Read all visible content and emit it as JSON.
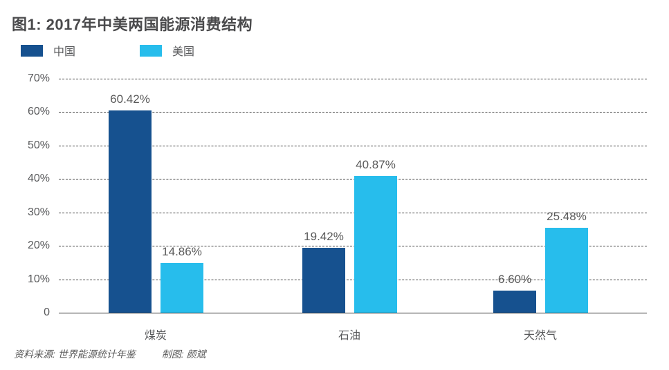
{
  "title": "图1: 2017年中美两国能源消费结构",
  "footer": {
    "source": "资料来源: 世界能源统计年鉴",
    "credit": "制图: 颜斌"
  },
  "colors": {
    "china": "#16518f",
    "usa": "#27bdec",
    "title_text": "#4a4a4c",
    "label_text": "#595959",
    "grid": "#3f3f3f"
  },
  "chart_data": {
    "type": "bar",
    "title": "图1: 2017年中美两国能源消费结构",
    "categories": [
      "煤炭",
      "石油",
      "天然气"
    ],
    "category_ids": [
      "coal",
      "oil",
      "gas"
    ],
    "series": [
      {
        "id": "china",
        "name": "中国",
        "color": "#16518f",
        "values": [
          60.42,
          19.42,
          6.6
        ],
        "labels": [
          "60.42%",
          "19.42%",
          "6.60%"
        ]
      },
      {
        "id": "usa",
        "name": "美国",
        "color": "#27bdec",
        "values": [
          14.86,
          40.87,
          25.48
        ],
        "labels": [
          "14.86%",
          "40.87%",
          "25.48%"
        ]
      }
    ],
    "xlabel": "",
    "ylabel": "",
    "ylim": [
      0,
      70
    ],
    "yticks": [
      {
        "value": 0,
        "label": "0"
      },
      {
        "value": 10,
        "label": "10%"
      },
      {
        "value": 20,
        "label": "20%"
      },
      {
        "value": 30,
        "label": "30%"
      },
      {
        "value": 40,
        "label": "40%"
      },
      {
        "value": 50,
        "label": "50%"
      },
      {
        "value": 60,
        "label": "60%"
      },
      {
        "value": 70,
        "label": "70%"
      }
    ],
    "grid": "horizontal-dashed",
    "legend_position": "top-left",
    "value_labels": "above-bars"
  }
}
